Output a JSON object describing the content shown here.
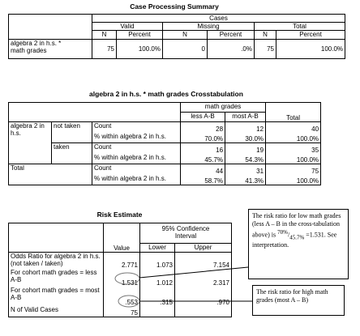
{
  "case_processing": {
    "title": "Case Processing Summary",
    "cases": "Cases",
    "groups": [
      "Valid",
      "Missing",
      "Total"
    ],
    "subheaders": [
      "N",
      "Percent",
      "N",
      "Percent",
      "N",
      "Percent"
    ],
    "row_label": "algebra 2 in h.s. * math grades",
    "values": [
      "75",
      "100.0%",
      "0",
      ".0%",
      "75",
      "100.0%"
    ]
  },
  "crosstab": {
    "title": "algebra 2 in h.s. * math grades Crosstabulation",
    "column_variable": "math grades",
    "columns": [
      "less A-B",
      "most A-B",
      "Total"
    ],
    "row_variable": "algebra 2 in h.s.",
    "rows": [
      {
        "group": "not taken",
        "stats": [
          {
            "label": "Count",
            "values": [
              "28",
              "12",
              "40"
            ]
          },
          {
            "label": "% within algebra 2 in h.s.",
            "values": [
              "70.0%",
              "30.0%",
              "100.0%"
            ]
          }
        ]
      },
      {
        "group": "taken",
        "stats": [
          {
            "label": "Count",
            "values": [
              "16",
              "19",
              "35"
            ]
          },
          {
            "label": "% within algebra 2 in h.s.",
            "values": [
              "45.7%",
              "54.3%",
              "100.0%"
            ]
          }
        ]
      },
      {
        "group": "Total",
        "stats": [
          {
            "label": "Count",
            "values": [
              "44",
              "31",
              "75"
            ]
          },
          {
            "label": "% within algebra 2 in h.s.",
            "values": [
              "58.7%",
              "41.3%",
              "100.0%"
            ]
          }
        ]
      }
    ]
  },
  "risk": {
    "title": "Risk Estimate",
    "interval_header": "95% Confidence Interval",
    "columns": [
      "Value",
      "Lower",
      "Upper"
    ],
    "rows": [
      {
        "label": "Odds Ratio for algebra 2 in h.s. (not taken / taken)",
        "values": [
          "2.771",
          "1.073",
          "7.154"
        ]
      },
      {
        "label": "For cohort math grades = less A-B",
        "values": [
          "1.531",
          "1.012",
          "2.317"
        ]
      },
      {
        "label": "For cohort math grades = most A-B",
        "values": [
          ".553",
          ".315",
          ".970"
        ]
      },
      {
        "label": "N of Valid Cases",
        "values": [
          "75"
        ]
      }
    ]
  },
  "notes": [
    {
      "text_before": "The risk ratio for low math grades (less A – B in the cross-tabulation above) is",
      "numerator": "70%",
      "denominator": "45.7%",
      "text_after": "=1.531. See interpretation."
    },
    {
      "text": "The risk ratio for high math grades (most A – B)"
    }
  ]
}
